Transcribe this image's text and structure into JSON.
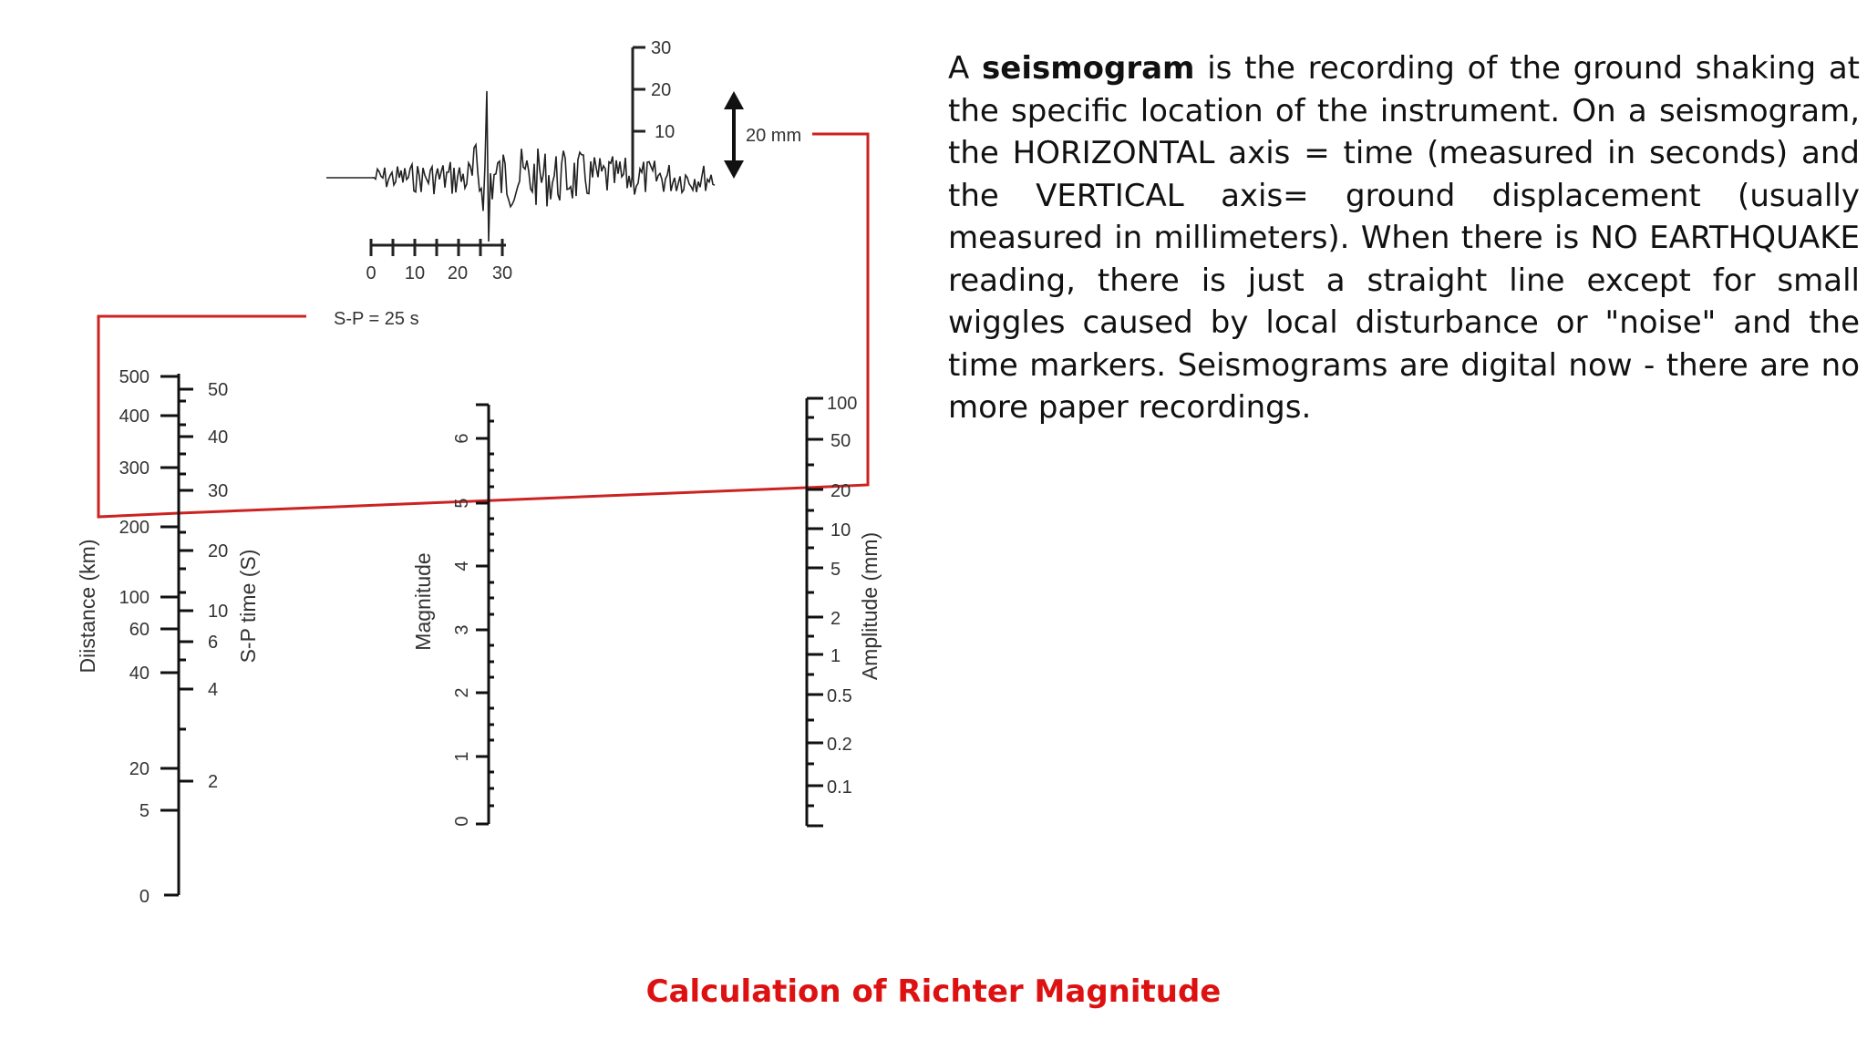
{
  "description": {
    "lead": "A",
    "term": "seismogram",
    "body": " is the recording of the ground shaking at the specific location of the instrument. On a seismogram, the HORIZONTAL axis = time (measured in seconds) and the VERTICAL axis= ground displacement (usually measured in millimeters). When there is NO EARTHQUAKE reading, there is just a straight line except for small wiggles caused by local disturbance or \"noise\" and the time markers. Seismograms are digital now - there are no more paper recordings."
  },
  "caption": "Calculation of Richter Magnitude",
  "seismogram": {
    "amplitude_label": "20 mm",
    "sp_label": "S-P = 25 s",
    "time_ticks": [
      "0",
      "10",
      "20",
      "30"
    ],
    "amplitude_ticks": [
      "10",
      "20",
      "30"
    ]
  },
  "nomogram": {
    "distance_axis": {
      "title": "Diistance (km)",
      "ticks": [
        "500",
        "400",
        "300",
        "200",
        "100",
        "60",
        "40",
        "20",
        "5",
        "0"
      ]
    },
    "sp_axis": {
      "title": "S-P time (S)",
      "ticks": [
        "50",
        "40",
        "30",
        "20",
        "10",
        "6",
        "4",
        "2"
      ]
    },
    "magnitude_axis": {
      "title": "Magnitude",
      "ticks": [
        "0",
        "1",
        "2",
        "3",
        "4",
        "5",
        "6"
      ]
    },
    "amplitude_axis": {
      "title": "Amplitude (mm)",
      "ticks": [
        "100",
        "50",
        "20",
        "10",
        "5",
        "2",
        "1",
        "0.5",
        "0.2",
        "0.1"
      ]
    },
    "reading": {
      "sp_time_s": 25,
      "amplitude_mm": 20,
      "magnitude": 5
    }
  },
  "colors": {
    "guide_line": "#cc2222",
    "caption": "#dd1111",
    "axes": "#111111"
  }
}
